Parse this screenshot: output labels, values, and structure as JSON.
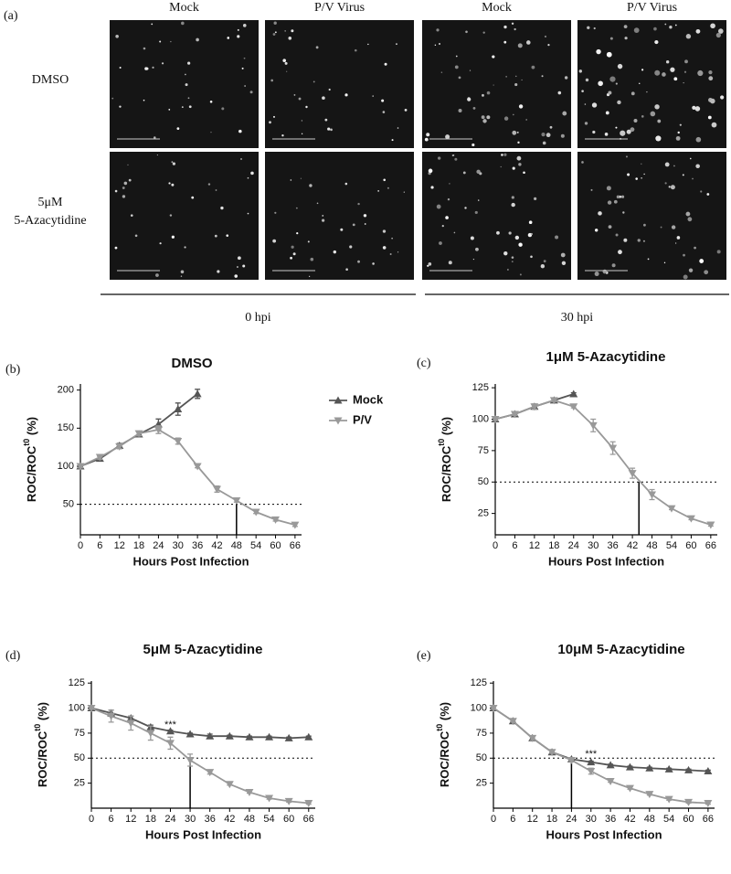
{
  "figure_a": {
    "label": "(a)",
    "columns": [
      "Mock",
      "P/V Virus",
      "Mock",
      "P/V Virus"
    ],
    "rows": [
      [
        "DMSO"
      ],
      [
        "5μM",
        "5-Azacytidine"
      ]
    ],
    "timepoints": [
      "0 hpi",
      "30 hpi"
    ]
  },
  "chart_data": [
    {
      "type": "line",
      "panel": "(b)",
      "title": "DMSO",
      "xlabel": "Hours Post Infection",
      "ylabel": {
        "text": "ROC/ROC",
        "superscript": "t0",
        "unit": "(%)"
      },
      "x": [
        0,
        6,
        12,
        18,
        24,
        30,
        36,
        42,
        48,
        54,
        60,
        66
      ],
      "xlim": [
        0,
        68
      ],
      "xticks": [
        0,
        6,
        12,
        18,
        24,
        30,
        36,
        42,
        48,
        54,
        60,
        66
      ],
      "ylim": [
        10,
        208
      ],
      "yticks": [
        50,
        100,
        150,
        200
      ],
      "hline": 50,
      "vline": 48,
      "legend": "right",
      "series": [
        {
          "name": "Mock",
          "color": "#555555",
          "marker": "triangle-up",
          "values": [
            100,
            110,
            127,
            142,
            155,
            175,
            195,
            null,
            null,
            null,
            null,
            null
          ],
          "errors": [
            2,
            3,
            3,
            3,
            7,
            8,
            6,
            null,
            null,
            null,
            null,
            null
          ]
        },
        {
          "name": "P/V",
          "color": "#999999",
          "marker": "triangle-down",
          "values": [
            100,
            112,
            126,
            143,
            148,
            133,
            100,
            70,
            55,
            40,
            30,
            23
          ],
          "errors": [
            2,
            3,
            3,
            3,
            5,
            4,
            2,
            4,
            2,
            2,
            2,
            2
          ]
        }
      ]
    },
    {
      "type": "line",
      "panel": "(c)",
      "title": "1μM 5-Azacytidine",
      "xlabel": "Hours Post Infection",
      "ylabel": {
        "text": "ROC/ROC",
        "superscript": "t0",
        "unit": "(%)"
      },
      "x": [
        0,
        6,
        12,
        18,
        24,
        30,
        36,
        42,
        48,
        54,
        60,
        66
      ],
      "xlim": [
        0,
        68
      ],
      "xticks": [
        0,
        6,
        12,
        18,
        24,
        30,
        36,
        42,
        48,
        54,
        60,
        66
      ],
      "ylim": [
        8,
        128
      ],
      "yticks": [
        25,
        50,
        75,
        100,
        125
      ],
      "hline": 50,
      "vline": 44,
      "series": [
        {
          "name": "Mock",
          "color": "#555555",
          "marker": "triangle-up",
          "values": [
            100,
            104,
            110,
            115,
            120,
            null,
            null,
            null,
            null,
            null,
            null,
            null
          ],
          "errors": [
            1,
            1,
            2,
            1,
            1,
            null,
            null,
            null,
            null,
            null,
            null,
            null
          ]
        },
        {
          "name": "P/V",
          "color": "#999999",
          "marker": "triangle-down",
          "values": [
            100,
            104,
            110,
            115,
            110,
            95,
            77,
            57,
            40,
            29,
            21,
            16
          ],
          "errors": [
            1,
            1,
            2,
            1,
            1,
            5,
            5,
            4,
            4,
            1,
            1,
            1
          ]
        }
      ]
    },
    {
      "type": "line",
      "panel": "(d)",
      "title": "5μM 5-Azacytidine",
      "xlabel": "Hours Post Infection",
      "ylabel": {
        "text": "ROC/ROC",
        "superscript": "t0",
        "unit": "(%)"
      },
      "x": [
        0,
        6,
        12,
        18,
        24,
        30,
        36,
        42,
        48,
        54,
        60,
        66
      ],
      "xlim": [
        0,
        68
      ],
      "xticks": [
        0,
        6,
        12,
        18,
        24,
        30,
        36,
        42,
        48,
        54,
        60,
        66
      ],
      "ylim": [
        0,
        127
      ],
      "yticks": [
        25,
        50,
        75,
        100,
        125
      ],
      "hline": 50,
      "vline": 30,
      "annotations": [
        {
          "text": "***",
          "x": 24,
          "y": 83
        }
      ],
      "series": [
        {
          "name": "Mock",
          "color": "#555555",
          "marker": "triangle-up",
          "values": [
            100,
            95,
            90,
            81,
            77,
            74,
            72,
            72,
            71,
            71,
            70,
            71
          ],
          "errors": [
            1,
            3,
            2,
            2,
            1,
            1,
            2,
            1,
            1,
            1,
            1,
            1
          ]
        },
        {
          "name": "P/V",
          "color": "#999999",
          "marker": "triangle-down",
          "values": [
            100,
            92,
            85,
            75,
            65,
            48,
            36,
            24,
            16,
            10,
            7,
            5
          ],
          "errors": [
            1,
            6,
            7,
            7,
            6,
            6,
            2,
            1,
            1,
            1,
            1,
            1
          ]
        }
      ]
    },
    {
      "type": "line",
      "panel": "(e)",
      "title": "10μM 5-Azacytidine",
      "xlabel": "Hours Post Infection",
      "ylabel": {
        "text": "ROC/ROC",
        "superscript": "t0",
        "unit": "(%)"
      },
      "x": [
        0,
        6,
        12,
        18,
        24,
        30,
        36,
        42,
        48,
        54,
        60,
        66
      ],
      "xlim": [
        0,
        68
      ],
      "xticks": [
        0,
        6,
        12,
        18,
        24,
        30,
        36,
        42,
        48,
        54,
        60,
        66
      ],
      "ylim": [
        0,
        127
      ],
      "yticks": [
        25,
        50,
        75,
        100,
        125
      ],
      "hline": 50,
      "vline": 24,
      "annotations": [
        {
          "text": "***",
          "x": 30,
          "y": 54
        }
      ],
      "series": [
        {
          "name": "Mock",
          "color": "#555555",
          "marker": "triangle-up",
          "values": [
            100,
            87,
            70,
            56,
            49,
            46,
            43,
            41,
            40,
            39,
            38,
            37
          ],
          "errors": [
            1,
            1,
            2,
            1,
            1,
            1,
            1,
            1,
            1,
            1,
            1,
            1
          ]
        },
        {
          "name": "P/V",
          "color": "#999999",
          "marker": "triangle-down",
          "values": [
            100,
            87,
            70,
            56,
            48,
            37,
            27,
            20,
            14,
            9,
            6,
            5
          ],
          "errors": [
            1,
            1,
            2,
            1,
            1,
            3,
            1,
            1,
            1,
            1,
            1,
            1
          ]
        }
      ]
    }
  ]
}
